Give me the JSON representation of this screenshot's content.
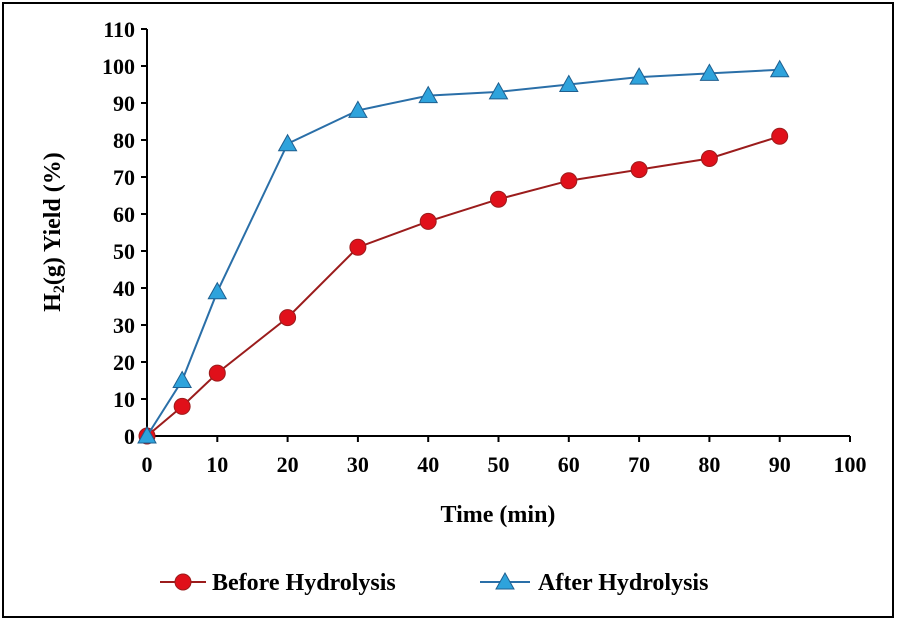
{
  "chart_data": {
    "type": "line",
    "xlabel": "Time (min)",
    "ylabel_main": "H",
    "ylabel_sub": "2",
    "ylabel_rest": "(g) Yield (%)",
    "xlim": [
      0,
      100
    ],
    "ylim": [
      0,
      110
    ],
    "xticks": [
      0,
      10,
      20,
      30,
      40,
      50,
      60,
      70,
      80,
      90,
      100
    ],
    "yticks": [
      0,
      10,
      20,
      30,
      40,
      50,
      60,
      70,
      80,
      90,
      100,
      110
    ],
    "grid": false,
    "legend_position": "bottom",
    "series": [
      {
        "name": "Before Hydrolysis",
        "color": "#9b1c1c",
        "marker_color": "#e0101a",
        "marker": "circle",
        "x": [
          0,
          5,
          10,
          20,
          30,
          40,
          50,
          60,
          70,
          80,
          90
        ],
        "y": [
          0,
          8,
          17,
          32,
          51,
          58,
          64,
          69,
          72,
          75,
          81
        ]
      },
      {
        "name": "After Hydrolysis",
        "color": "#2a6fa8",
        "marker_color": "#2ea3dc",
        "marker": "triangle",
        "x": [
          0,
          5,
          10,
          20,
          30,
          40,
          50,
          60,
          70,
          80,
          90
        ],
        "y": [
          0,
          15,
          39,
          79,
          88,
          92,
          93,
          95,
          97,
          98,
          99
        ]
      }
    ]
  }
}
